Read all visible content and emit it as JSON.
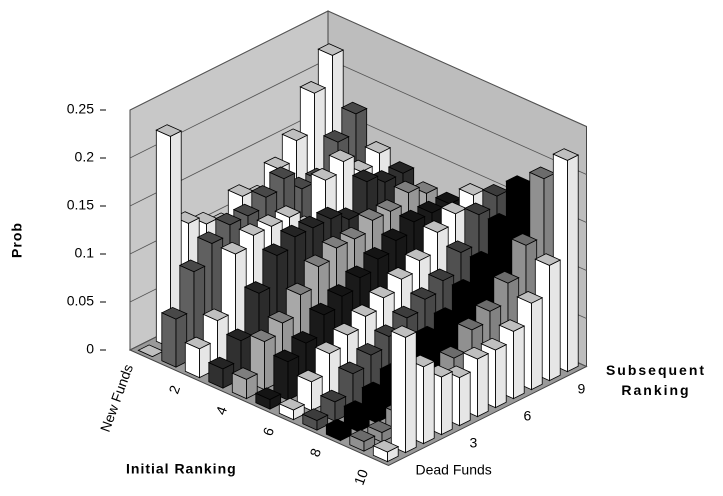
{
  "chart_data": {
    "type": "bar3d",
    "y_label": "Prob",
    "x_label": "Initial Ranking",
    "z_label": "Subsequent Ranking",
    "x_categories": [
      "New Funds",
      null,
      "2",
      null,
      "4",
      null,
      "6",
      null,
      "8",
      null,
      "10"
    ],
    "z_categories": [
      "Dead Funds",
      null,
      null,
      "3",
      null,
      null,
      "6",
      null,
      null,
      "9",
      null
    ],
    "values": [
      [
        0.0,
        0.22,
        0.12,
        0.11,
        0.1,
        0.12,
        0.11,
        0.13,
        0.15,
        0.19,
        0.22
      ],
      [
        0.05,
        0.09,
        0.11,
        0.12,
        0.12,
        0.13,
        0.14,
        0.12,
        0.12,
        0.15,
        0.17
      ],
      [
        0.03,
        0.05,
        0.11,
        0.12,
        0.12,
        0.12,
        0.1,
        0.14,
        0.15,
        0.13,
        0.14
      ],
      [
        0.02,
        0.04,
        0.08,
        0.11,
        0.12,
        0.12,
        0.12,
        0.11,
        0.14,
        0.13,
        0.13
      ],
      [
        0.02,
        0.05,
        0.06,
        0.08,
        0.1,
        0.11,
        0.11,
        0.12,
        0.12,
        0.13,
        0.12
      ],
      [
        0.01,
        0.04,
        0.05,
        0.07,
        0.08,
        0.09,
        0.1,
        0.11,
        0.12,
        0.12,
        0.12
      ],
      [
        0.01,
        0.03,
        0.05,
        0.06,
        0.07,
        0.08,
        0.09,
        0.1,
        0.12,
        0.13,
        0.14
      ],
      [
        0.01,
        0.02,
        0.04,
        0.05,
        0.06,
        0.07,
        0.08,
        0.09,
        0.11,
        0.14,
        0.15
      ],
      [
        0.01,
        0.02,
        0.03,
        0.04,
        0.05,
        0.06,
        0.07,
        0.09,
        0.11,
        0.14,
        0.17
      ],
      [
        0.01,
        0.01,
        0.02,
        0.03,
        0.04,
        0.05,
        0.07,
        0.08,
        0.1,
        0.13,
        0.19
      ],
      [
        0.01,
        0.12,
        0.08,
        0.06,
        0.05,
        0.06,
        0.06,
        0.07,
        0.09,
        0.12,
        0.22
      ]
    ],
    "colors": [
      "#ffffff",
      "#606060",
      "#ffffff",
      "#303030",
      "#a8a8a8",
      "#1a1a1a",
      "#ffffff",
      "#505050",
      "#000000",
      "#909090",
      "#ffffff"
    ],
    "ylim": [
      0,
      0.25
    ],
    "yticks": [
      0,
      0.05,
      0.1,
      0.15,
      0.2,
      0.25
    ],
    "grid": true
  }
}
